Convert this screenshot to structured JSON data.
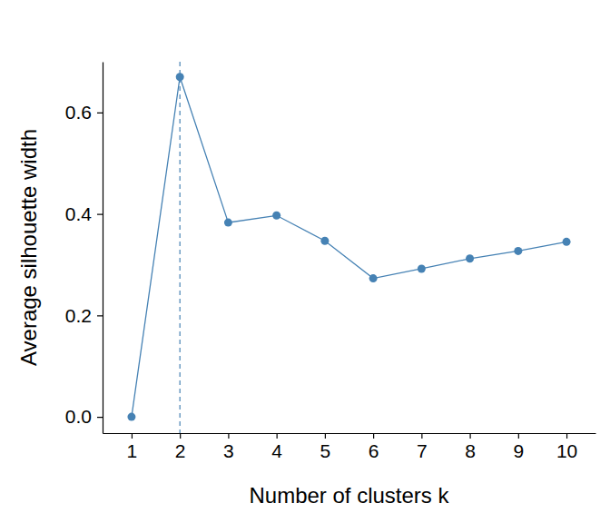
{
  "chart_data": {
    "type": "line",
    "x_label": "Number of clusters k",
    "y_label": "Average silhouette width",
    "x": [
      1,
      2,
      3,
      4,
      5,
      6,
      7,
      8,
      9,
      10
    ],
    "series": [
      {
        "color": "#4682b4",
        "marker": "circle",
        "values": [
          0.0,
          0.67,
          0.383,
          0.397,
          0.347,
          0.273,
          0.292,
          0.312,
          0.327,
          0.345
        ]
      }
    ],
    "reference_x": 2,
    "xlim": [
      0.4,
      10.6
    ],
    "xticks": [
      1,
      2,
      3,
      4,
      5,
      6,
      7,
      8,
      9,
      10
    ],
    "ylim": [
      -0.032,
      0.7
    ],
    "yticks": [
      {
        "value": 0,
        "label": "0.0"
      },
      0.2,
      0.4,
      0.6
    ],
    "grid": false
  }
}
